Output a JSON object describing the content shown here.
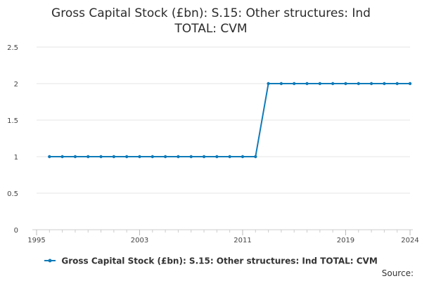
{
  "chart_data": {
    "type": "line",
    "title_lines": [
      "Gross Capital Stock (£bn): S.15: Other structures: Ind",
      "TOTAL: CVM"
    ],
    "xlabel": "",
    "ylabel": "",
    "xlim": [
      1995,
      2024
    ],
    "ylim": [
      0,
      2.5
    ],
    "x_ticks": [
      {
        "value": 1995,
        "label": "1995"
      },
      {
        "value": 2003,
        "label": "2003"
      },
      {
        "value": 2011,
        "label": "2011"
      },
      {
        "value": 2019,
        "label": "2019"
      },
      {
        "value": 2024,
        "label": "2024"
      }
    ],
    "y_ticks": [
      {
        "value": 0,
        "label": "0"
      },
      {
        "value": 0.5,
        "label": "0.5"
      },
      {
        "value": 1,
        "label": "1"
      },
      {
        "value": 1.5,
        "label": "1.5"
      },
      {
        "value": 2,
        "label": "2"
      },
      {
        "value": 2.5,
        "label": "2.5"
      }
    ],
    "grid": true,
    "legend_position": "bottom",
    "series": [
      {
        "name": "Gross Capital Stock (£bn): S.15: Other structures: Ind TOTAL: CVM",
        "color": "#0f7ab8",
        "x": [
          1996,
          1997,
          1998,
          1999,
          2000,
          2001,
          2002,
          2003,
          2004,
          2005,
          2006,
          2007,
          2008,
          2009,
          2010,
          2011,
          2012,
          2013,
          2014,
          2015,
          2016,
          2017,
          2018,
          2019,
          2020,
          2021,
          2022,
          2023,
          2024
        ],
        "values": [
          1,
          1,
          1,
          1,
          1,
          1,
          1,
          1,
          1,
          1,
          1,
          1,
          1,
          1,
          1,
          1,
          1,
          2,
          2,
          2,
          2,
          2,
          2,
          2,
          2,
          2,
          2,
          2,
          2
        ]
      }
    ]
  },
  "footer": {
    "source_label": "Source:"
  }
}
